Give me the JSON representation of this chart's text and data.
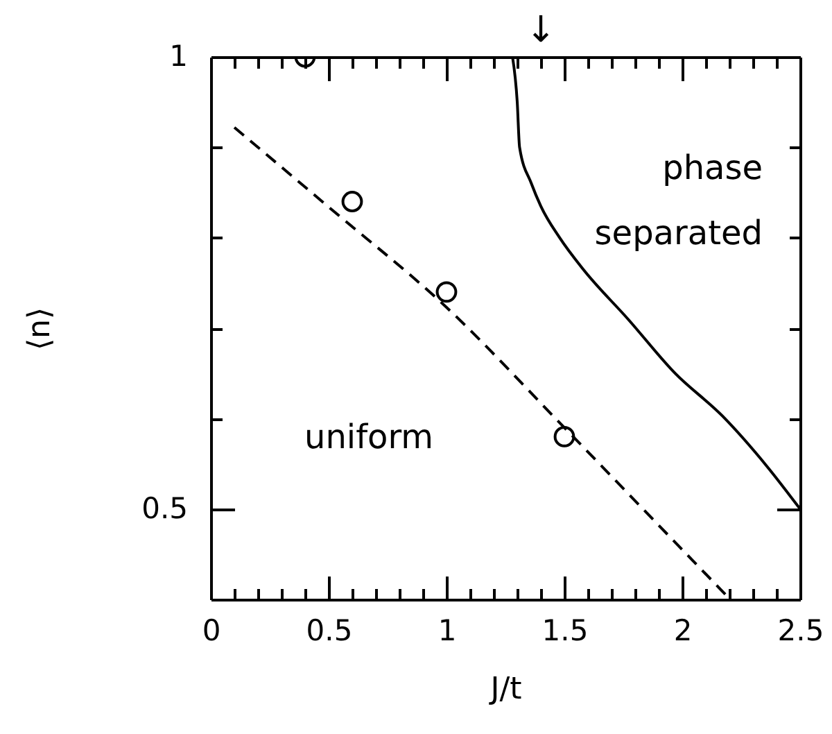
{
  "chart_data": {
    "type": "line",
    "xlabel": "J/t",
    "ylabel": "⟨n⟩",
    "xlim": [
      0,
      2.5
    ],
    "ylim": [
      0.4,
      1
    ],
    "xticks": [
      0,
      {
        "value": 0.1,
        "label": null
      },
      {
        "value": 0.2,
        "label": null
      },
      {
        "value": 0.3,
        "label": null
      },
      {
        "value": 0.4,
        "label": null
      },
      0.5,
      {
        "value": 0.6,
        "label": null
      },
      {
        "value": 0.7,
        "label": null
      },
      {
        "value": 0.8,
        "label": null
      },
      {
        "value": 0.9,
        "label": null
      },
      1,
      {
        "value": 1.1,
        "label": null
      },
      {
        "value": 1.2,
        "label": null
      },
      {
        "value": 1.3,
        "label": null
      },
      {
        "value": 1.4,
        "label": null
      },
      1.5,
      {
        "value": 1.6,
        "label": null
      },
      {
        "value": 1.7,
        "label": null
      },
      {
        "value": 1.8,
        "label": null
      },
      {
        "value": 1.9,
        "label": null
      },
      2,
      {
        "value": 2.1,
        "label": null
      },
      {
        "value": 2.2,
        "label": null
      },
      {
        "value": 2.3,
        "label": null
      },
      {
        "value": 2.4,
        "label": null
      },
      2.5
    ],
    "yticks": [
      0.5,
      {
        "value": 0.6,
        "label": null
      },
      {
        "value": 0.7,
        "label": null
      },
      {
        "value": 0.8,
        "label": null
      },
      {
        "value": 0.9,
        "label": null
      },
      1
    ],
    "series": [
      {
        "line_style": "dashed",
        "color": "#000000",
        "x": [
          0.1,
          0.5,
          1.0,
          1.5,
          2.0,
          2.2
        ],
        "values": [
          0.922,
          0.834,
          0.723,
          0.59,
          0.455,
          0.401
        ]
      },
      {
        "line_style": "solid",
        "color": "#000000",
        "x": [
          1.28,
          1.3,
          1.31,
          1.36,
          1.4,
          1.48,
          1.58,
          1.77,
          1.97,
          2.17,
          2.36,
          2.5
        ],
        "values": [
          1.0,
          0.95,
          0.9,
          0.86,
          0.835,
          0.8,
          0.765,
          0.71,
          0.65,
          0.603,
          0.547,
          0.5
        ]
      },
      {
        "type": "scatter",
        "marker": "circle",
        "color": "#000000",
        "x": [
          0.4,
          0.6,
          1.0,
          1.5
        ],
        "values": [
          1.0,
          0.84,
          0.74,
          0.58
        ]
      }
    ],
    "annotations": [
      "↓",
      "uniform",
      "phase separated"
    ]
  }
}
